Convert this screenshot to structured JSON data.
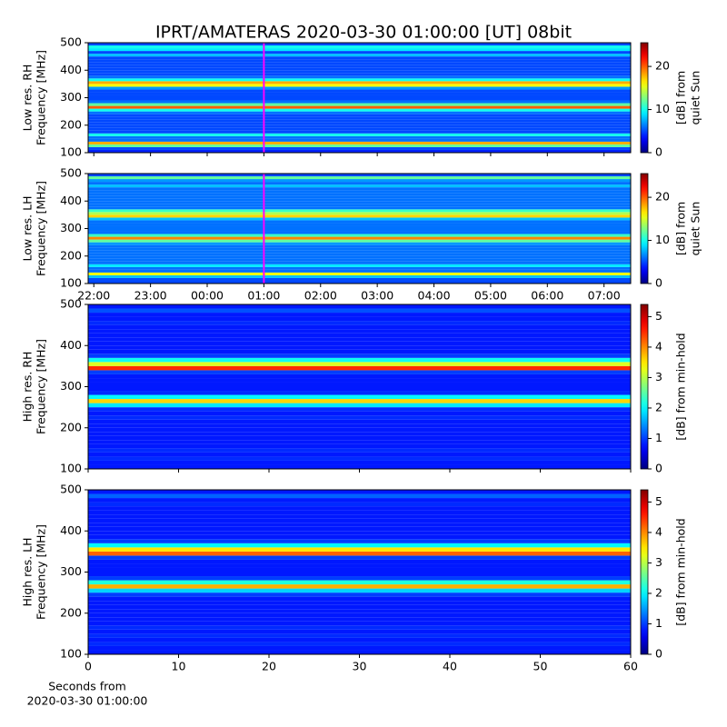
{
  "title": "IPRT/AMATERAS 2020-03-30 01:00:00 [UT]   08bit",
  "chart_data": [
    {
      "type": "heatmap",
      "ylabel": [
        "Low res. RH",
        "Frequency [MHz]"
      ],
      "colorbar_label": [
        "[dB] from",
        "quiet Sun"
      ],
      "xlim": [
        21.9,
        31.47
      ],
      "xticks": [
        22,
        23,
        24,
        25,
        26,
        27,
        28,
        29,
        30,
        31
      ],
      "ylim": [
        100,
        500
      ],
      "yticks": [
        100,
        200,
        300,
        400,
        500
      ],
      "clim": [
        0,
        25.5
      ],
      "cticks": [
        0,
        10,
        20
      ],
      "marker_x": 25,
      "marker_color": "#ff00ff",
      "ybins": [
        100,
        110,
        120,
        130,
        140,
        150,
        160,
        170,
        180,
        190,
        200,
        210,
        220,
        230,
        240,
        250,
        260,
        270,
        280,
        290,
        300,
        310,
        320,
        330,
        340,
        350,
        360,
        370,
        380,
        390,
        400,
        410,
        420,
        430,
        440,
        450,
        460,
        470,
        480,
        490,
        500
      ],
      "values": [
        4,
        5,
        12,
        18,
        6,
        6,
        10,
        5,
        5,
        5,
        5,
        5,
        5,
        5,
        6,
        10,
        20,
        12,
        6,
        5,
        5,
        5,
        5,
        7,
        16,
        18,
        10,
        6,
        5,
        5,
        5,
        5,
        5,
        5,
        5,
        8,
        5,
        9,
        10,
        5
      ]
    },
    {
      "type": "heatmap",
      "ylabel": [
        "Low res. LH",
        "Frequency [MHz]"
      ],
      "colorbar_label": [
        "[dB] from",
        "quiet Sun"
      ],
      "xlim": [
        21.9,
        31.47
      ],
      "xticks": [
        {
          "value": 22,
          "label": "22:00"
        },
        {
          "value": 23,
          "label": "23:00"
        },
        {
          "value": 24,
          "label": "00:00"
        },
        {
          "value": 25,
          "label": "01:00"
        },
        {
          "value": 26,
          "label": "02:00"
        },
        {
          "value": 27,
          "label": "03:00"
        },
        {
          "value": 28,
          "label": "04:00"
        },
        {
          "value": 29,
          "label": "05:00"
        },
        {
          "value": 30,
          "label": "06:00"
        },
        {
          "value": 31,
          "label": "07:00"
        }
      ],
      "ylim": [
        100,
        500
      ],
      "yticks": [
        100,
        200,
        300,
        400,
        500
      ],
      "clim": [
        0,
        25.5
      ],
      "cticks": [
        0,
        10,
        20
      ],
      "marker_x": 25,
      "marker_color": "#ff00ff",
      "ybins": [
        100,
        110,
        120,
        130,
        140,
        150,
        160,
        170,
        180,
        190,
        200,
        210,
        220,
        230,
        240,
        250,
        260,
        270,
        280,
        290,
        300,
        310,
        320,
        330,
        340,
        350,
        360,
        370,
        380,
        390,
        400,
        410,
        420,
        430,
        440,
        450,
        460,
        470,
        480,
        490,
        500
      ],
      "values": [
        5,
        5,
        8,
        16,
        6,
        6,
        9,
        6,
        6,
        6,
        6,
        6,
        6,
        6,
        7,
        12,
        19,
        11,
        6,
        6,
        6,
        6,
        6,
        8,
        17,
        14,
        11,
        6,
        6,
        6,
        6,
        6,
        6,
        6,
        6,
        8,
        6,
        7,
        12,
        5
      ]
    },
    {
      "type": "heatmap",
      "ylabel": [
        "High res. RH",
        "Frequency [MHz]"
      ],
      "colorbar_label": [
        "[dB] from min-hold"
      ],
      "xlim": [
        0,
        60
      ],
      "xticks": [
        0,
        10,
        20,
        30,
        40,
        50,
        60
      ],
      "ylim": [
        100,
        500
      ],
      "yticks": [
        100,
        200,
        300,
        400,
        500
      ],
      "clim": [
        0,
        5.4
      ],
      "cticks": [
        0,
        1,
        2,
        3,
        4,
        5
      ],
      "ybins": [
        100,
        110,
        120,
        130,
        140,
        150,
        160,
        170,
        180,
        190,
        200,
        210,
        220,
        230,
        240,
        250,
        260,
        270,
        280,
        290,
        300,
        310,
        320,
        330,
        340,
        350,
        360,
        370,
        380,
        390,
        400,
        410,
        420,
        430,
        440,
        450,
        460,
        470,
        480,
        490,
        500
      ],
      "values": [
        0.8,
        0.8,
        0.9,
        0.8,
        0.9,
        0.8,
        0.8,
        0.8,
        0.8,
        0.8,
        0.8,
        0.8,
        0.9,
        0.8,
        0.9,
        1.9,
        3.6,
        2,
        0.9,
        0.8,
        0.8,
        0.8,
        0.8,
        1,
        4.5,
        3.2,
        2.1,
        1,
        0.8,
        0.8,
        0.8,
        0.8,
        0.8,
        0.8,
        0.8,
        0.9,
        0.8,
        0.8,
        1.1,
        0.8
      ]
    },
    {
      "type": "heatmap",
      "ylabel": [
        "High res. LH",
        "Frequency [MHz]"
      ],
      "colorbar_label": [
        "[dB] from min-hold"
      ],
      "xlabel": [
        "Seconds from",
        "2020-03-30 01:00:00"
      ],
      "xlim": [
        0,
        60
      ],
      "xticks": [
        0,
        10,
        20,
        30,
        40,
        50,
        60
      ],
      "ylim": [
        100,
        500
      ],
      "yticks": [
        100,
        200,
        300,
        400,
        500
      ],
      "clim": [
        0,
        5.4
      ],
      "cticks": [
        0,
        1,
        2,
        3,
        4,
        5
      ],
      "ybins": [
        100,
        110,
        120,
        130,
        140,
        150,
        160,
        170,
        180,
        190,
        200,
        210,
        220,
        230,
        240,
        250,
        260,
        270,
        280,
        290,
        300,
        310,
        320,
        330,
        340,
        350,
        360,
        370,
        380,
        390,
        400,
        410,
        420,
        430,
        440,
        450,
        460,
        470,
        480,
        490,
        500
      ],
      "values": [
        0.8,
        0.8,
        0.9,
        0.8,
        0.9,
        0.8,
        0.9,
        0.8,
        0.8,
        0.8,
        0.8,
        0.8,
        0.8,
        0.8,
        1,
        1.8,
        3.8,
        2.2,
        1,
        0.8,
        0.8,
        0.8,
        0.8,
        1,
        4.2,
        3.5,
        2,
        1,
        0.8,
        0.8,
        0.8,
        0.8,
        0.8,
        0.8,
        0.8,
        0.8,
        0.9,
        0.8,
        1.2,
        0.8
      ]
    }
  ]
}
